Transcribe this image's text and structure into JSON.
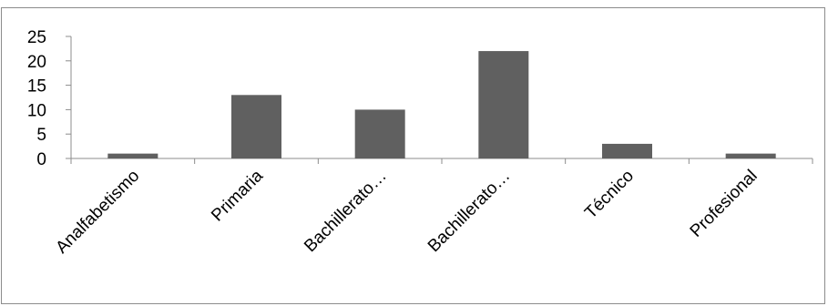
{
  "chart_data": {
    "type": "bar",
    "title": "",
    "xlabel": "",
    "ylabel": "",
    "categories": [
      "Analfabetismo",
      "Primaria",
      "Bachillerato…",
      "Bachillerato…",
      "Técnico",
      "Profesional"
    ],
    "values": [
      1,
      13,
      10,
      22,
      3,
      1
    ],
    "ylim": [
      0,
      25
    ],
    "yticks": [
      0,
      5,
      10,
      15,
      20,
      25
    ],
    "grid": false,
    "legend": "none",
    "bar_color": "#606060",
    "axis_color": "#8c8c8c"
  }
}
